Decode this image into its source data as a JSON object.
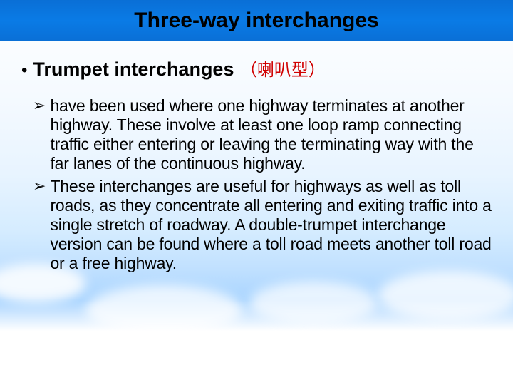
{
  "header": {
    "title": "Three-way interchanges"
  },
  "subtitle": {
    "label": "Trumpet interchanges",
    "cn": "（喇叭型）"
  },
  "body": {
    "items": [
      "have been used where one highway terminates at another highway. These involve at least one loop ramp connecting traffic either entering or leaving the terminating way with the far lanes of the continuous highway.",
      "These interchanges are useful for highways as well as toll roads, as they concentrate all entering and exiting traffic into a single stretch of roadway. A double-trumpet interchange version can be found where a toll road meets another toll road or a free highway."
    ]
  },
  "colors": {
    "header_bg": "#0a7be6",
    "cn_color": "#d00000",
    "text_color": "#000000"
  }
}
